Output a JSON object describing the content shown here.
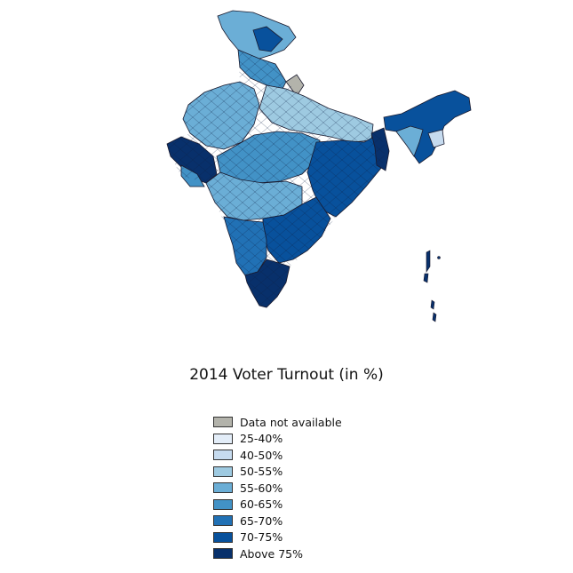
{
  "title": "2014 Voter Turnout (in %)",
  "legend": [
    {
      "label": "Data not available",
      "color": "#b3b3ab"
    },
    {
      "label": "25-40%",
      "color": "#e3edf8"
    },
    {
      "label": "40-50%",
      "color": "#c6dbef"
    },
    {
      "label": "50-55%",
      "color": "#9ecae1"
    },
    {
      "label": "55-60%",
      "color": "#6baed6"
    },
    {
      "label": "60-65%",
      "color": "#4292c6"
    },
    {
      "label": "65-70%",
      "color": "#2171b5"
    },
    {
      "label": "70-75%",
      "color": "#08519c"
    },
    {
      "label": "Above 75%",
      "color": "#08306b"
    }
  ],
  "colors": {
    "border": "#1a1a2e",
    "background": "#ffffff"
  }
}
